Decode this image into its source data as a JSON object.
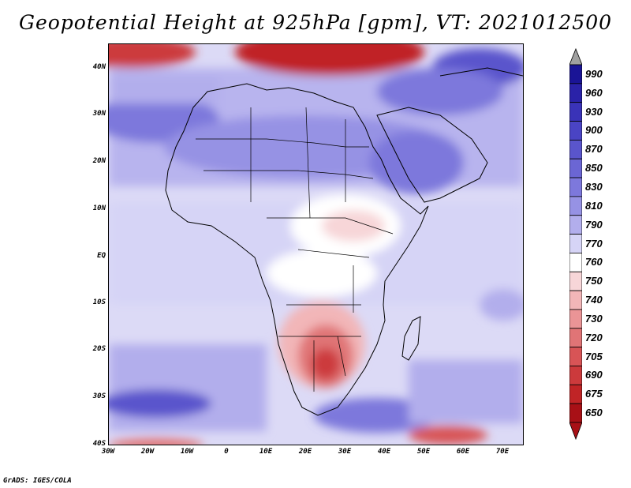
{
  "title": "Geopotential Height at 925hPa [gpm], VT: 2021012500",
  "credit": "GrADS: IGES/COLA",
  "lat_labels": [
    "40N",
    "30N",
    "20N",
    "10N",
    "EQ",
    "10S",
    "20S",
    "30S",
    "40S"
  ],
  "lon_labels": [
    "30W",
    "20W",
    "10W",
    "0",
    "10E",
    "20E",
    "30E",
    "40E",
    "50E",
    "60E",
    "70E"
  ],
  "map_extent": {
    "lon_min": -30,
    "lon_max": 75,
    "lat_min": -40,
    "lat_max": 45
  },
  "colorbar": {
    "labels": [
      "990",
      "960",
      "930",
      "900",
      "870",
      "850",
      "830",
      "810",
      "790",
      "770",
      "760",
      "750",
      "740",
      "730",
      "720",
      "705",
      "690",
      "675",
      "650"
    ],
    "colors": [
      "#1a1496",
      "#2a22a8",
      "#3a33b8",
      "#4a44c4",
      "#5a55cc",
      "#6b66d4",
      "#7d78dc",
      "#9692e4",
      "#b2aeec",
      "#d6d4f6",
      "#ffffff",
      "#f7d6d8",
      "#f2b6b8",
      "#ea9496",
      "#e07476",
      "#d85456",
      "#cc3a3c",
      "#c02426",
      "#a81016"
    ],
    "arrow_top": "#a0a0a0",
    "arrow_bottom": "#a81016"
  }
}
